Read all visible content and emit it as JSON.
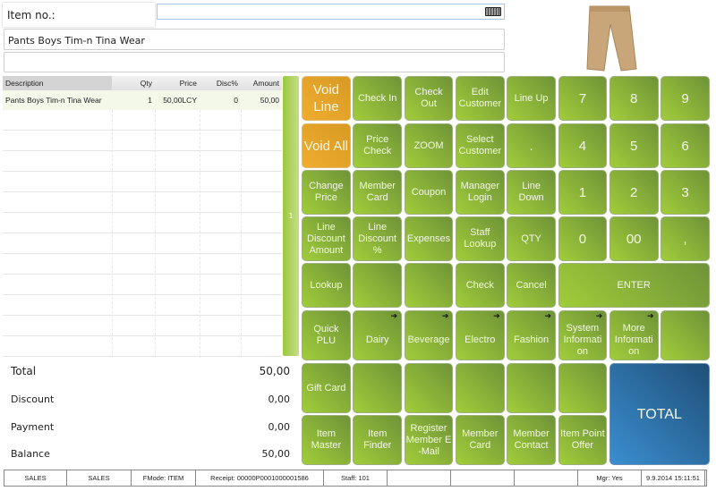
{
  "header": {
    "item_no_label": "Item no.:",
    "item_no_value": "",
    "description": "Pants Boys Tim-n Tina Wear",
    "description2": ""
  },
  "product_image": "pants",
  "grid": {
    "columns": [
      "Description",
      "Qty",
      "Price",
      "Disc%",
      "Amount"
    ],
    "rows": [
      [
        "Pants Boys Tim-n Tina Wear",
        "1",
        "50,00LCY",
        "0",
        "50,00"
      ]
    ]
  },
  "page_indicator": "1",
  "totals": [
    {
      "label": "Total",
      "value": "50,00"
    },
    {
      "label": "Discount",
      "value": "0,00"
    },
    {
      "label": "Payment",
      "value": "0,00"
    },
    {
      "label": "Balance",
      "value": "50,00"
    }
  ],
  "buttons": [
    [
      {
        "label": "Void Line",
        "style": "orange"
      },
      {
        "label": "Check In"
      },
      {
        "label": "Check Out"
      },
      {
        "label": "Edit Customer"
      },
      {
        "label": "Line Up"
      },
      {
        "label": "7",
        "style": "big"
      },
      {
        "label": "8",
        "style": "big"
      },
      {
        "label": "9",
        "style": "big"
      }
    ],
    [
      {
        "label": "Void All",
        "style": "orange"
      },
      {
        "label": "Price Check"
      },
      {
        "label": "ZOOM"
      },
      {
        "label": "Select Customer"
      },
      {
        "label": ".",
        "style": "big"
      },
      {
        "label": "4",
        "style": "big"
      },
      {
        "label": "5",
        "style": "big"
      },
      {
        "label": "6",
        "style": "big"
      }
    ],
    [
      {
        "label": "Change Price"
      },
      {
        "label": "Member Card"
      },
      {
        "label": "Coupon"
      },
      {
        "label": "Manager Login"
      },
      {
        "label": "Line Down"
      },
      {
        "label": "1",
        "style": "big"
      },
      {
        "label": "2",
        "style": "big"
      },
      {
        "label": "3",
        "style": "big"
      }
    ],
    [
      {
        "label": "Line Discount Amount"
      },
      {
        "label": "Line Discount %"
      },
      {
        "label": "Expenses"
      },
      {
        "label": "Staff Lookup"
      },
      {
        "label": "QTY"
      },
      {
        "label": "0",
        "style": "big"
      },
      {
        "label": "00",
        "style": "big"
      },
      {
        "label": ",",
        "style": "big"
      }
    ],
    [
      {
        "label": "Lookup"
      },
      {
        "label": ""
      },
      {
        "label": ""
      },
      {
        "label": "Check"
      },
      {
        "label": "Cancel"
      },
      {
        "label": "ENTER"
      }
    ],
    [
      {
        "label": "Quick PLU"
      },
      {
        "label": "Dairy",
        "arrow": true
      },
      {
        "label": "Beverage",
        "arrow": true
      },
      {
        "label": "Electro",
        "arrow": true
      },
      {
        "label": "Fashion",
        "arrow": true
      },
      {
        "label": "System Informati on",
        "arrow": true
      },
      {
        "label": "More Informati on",
        "arrow": true
      },
      {
        "label": ""
      }
    ],
    [
      {
        "label": "Gift Card"
      },
      {
        "label": ""
      },
      {
        "label": ""
      },
      {
        "label": ""
      },
      {
        "label": ""
      },
      {
        "label": ""
      },
      {
        "label": "TOTAL",
        "style": "blue"
      }
    ],
    [
      {
        "label": "Item Master"
      },
      {
        "label": "Item Finder"
      },
      {
        "label": "Register Member E -Mail"
      },
      {
        "label": "Member Card"
      },
      {
        "label": "Member Contact"
      },
      {
        "label": "Item Point Offer"
      }
    ]
  ],
  "status_bar": [
    "SALES",
    "SALES",
    "FMode: ITEM",
    "Receipt: 00000P0001000001586",
    "Staff: 101",
    "",
    "",
    "",
    "Mgr: Yes",
    "9.9.2014 15:11:51"
  ]
}
